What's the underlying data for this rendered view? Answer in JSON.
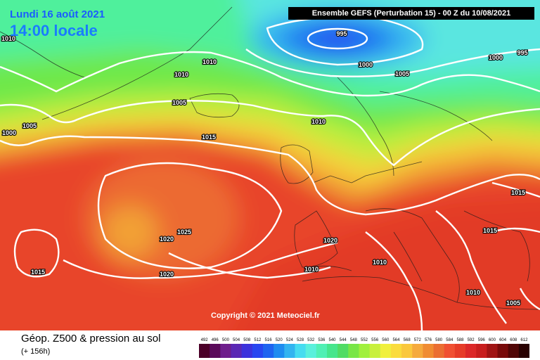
{
  "map": {
    "date_line": "Lundi 16 août 2021",
    "time_line": "14:00 locale",
    "run_info": "Ensemble GEFS  (Perturbation 15)  -  00 Z du 10/08/2021",
    "copyright": "Copyright © 2021 Meteociel.fr",
    "isobars": [
      "995",
      "1000",
      "1000",
      "1005",
      "1010",
      "1005",
      "1000",
      "995",
      "1010",
      "1010",
      "1005",
      "1010",
      "1015",
      "1025",
      "1020",
      "1020",
      "1020",
      "1015",
      "1010",
      "1010",
      "1015",
      "1015",
      "1010",
      "1005"
    ]
  },
  "footer": {
    "title": "Géop. Z500 & pression au sol",
    "subtitle": "(+ 156h)"
  },
  "legend": {
    "ticks": [
      "492",
      "496",
      "500",
      "504",
      "508",
      "512",
      "516",
      "520",
      "524",
      "528",
      "532",
      "536",
      "540",
      "544",
      "548",
      "552",
      "556",
      "560",
      "564",
      "568",
      "572",
      "576",
      "580",
      "584",
      "588",
      "592",
      "596",
      "600",
      "604",
      "608",
      "612"
    ],
    "colors": [
      "#4b0028",
      "#5a0a5a",
      "#6e1e8c",
      "#5a28b4",
      "#3c32dc",
      "#2846f0",
      "#1e64f0",
      "#1e8cf0",
      "#32b4f0",
      "#46dcf0",
      "#5af0dc",
      "#50f0b4",
      "#46e68c",
      "#50dc64",
      "#78e646",
      "#a0f03c",
      "#c8f03c",
      "#f0f03c",
      "#fadc3c",
      "#fac83c",
      "#f5aa3c",
      "#f08c32",
      "#eb6e32",
      "#f05032",
      "#e63c28",
      "#dc2828",
      "#c81e1e",
      "#a01414",
      "#780a0a",
      "#500505",
      "#280000"
    ]
  }
}
